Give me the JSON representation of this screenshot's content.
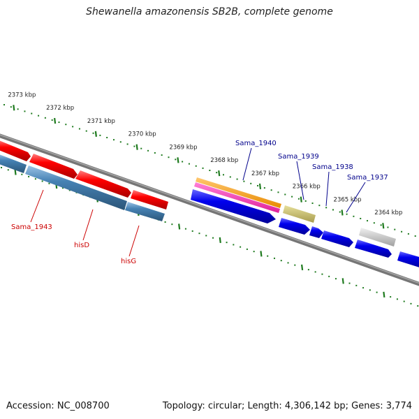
{
  "title": "Shewanella amazonensis SB2B, complete genome",
  "footer": {
    "accession": "Accession: NC_008700",
    "topology": "Topology: circular; Length: 4,306,142 bp; Genes: 3,774"
  },
  "colors": {
    "ruler": "#1e7a1e",
    "backbone": "#7a7a7a",
    "forward_gene": "#0000ee",
    "reverse_gene": "#ff0000",
    "reverse_operon": "#4682b4",
    "label_forward": "#00008b",
    "label_reverse": "#cc0000"
  },
  "ruler_ticks_kbp": [
    {
      "kbp": 2373,
      "label": "2373 kbp"
    },
    {
      "kbp": 2372,
      "label": "2372 kbp"
    },
    {
      "kbp": 2371,
      "label": "2371 kbp"
    },
    {
      "kbp": 2370,
      "label": "2370 kbp"
    },
    {
      "kbp": 2369,
      "label": "2369 kbp"
    },
    {
      "kbp": 2368,
      "label": "2368 kbp"
    },
    {
      "kbp": 2367,
      "label": "2367 kbp"
    },
    {
      "kbp": 2366,
      "label": "2366 kbp"
    },
    {
      "kbp": 2365,
      "label": "2365 kbp"
    },
    {
      "kbp": 2364,
      "label": "2364 kbp"
    }
  ],
  "labels": [
    {
      "id": "sama-1940",
      "text": "Sama_1940",
      "strand": "forward"
    },
    {
      "id": "sama-1939",
      "text": "Sama_1939",
      "strand": "forward"
    },
    {
      "id": "sama-1938",
      "text": "Sama_1938",
      "strand": "forward"
    },
    {
      "id": "sama-1937",
      "text": "Sama_1937",
      "strand": "forward"
    },
    {
      "id": "sama-1943",
      "text": "Sama_1943",
      "strand": "reverse"
    },
    {
      "id": "hisd",
      "text": "hisD",
      "strand": "reverse"
    },
    {
      "id": "hisg",
      "text": "hisG",
      "strand": "reverse"
    }
  ]
}
